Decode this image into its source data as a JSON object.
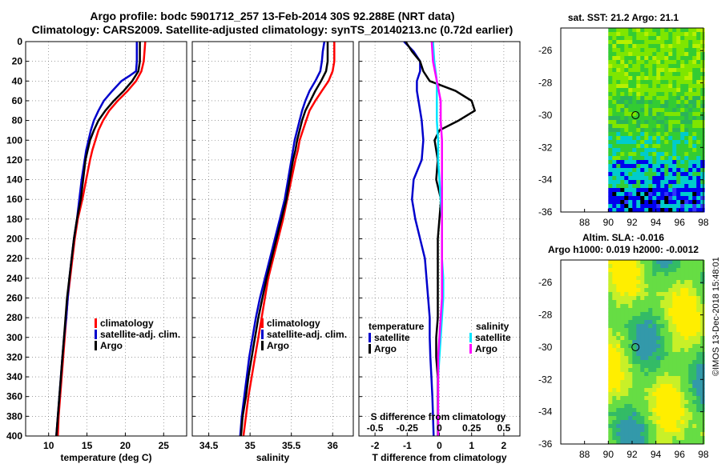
{
  "titles": {
    "line1": "Argo profile: bodc 5901712_257 13-Feb-2014 30S 92.288E (NRT data)",
    "line2": "Climatology: CARS2009. Satellite-adjusted climatology: synTS_20140213.nc (0.72d earlier)"
  },
  "maps": {
    "sst_title": "sat. SST: 21.2 Argo: 21.1",
    "sla_title1": "Altim. SLA: -0.016",
    "sla_title2": "Argo h1000: 0.019 h2000: -0.0012",
    "lon_ticks": [
      "88",
      "90",
      "92",
      "94",
      "96",
      "98"
    ],
    "lat_ticks": [
      "-26",
      "-28",
      "-30",
      "-32",
      "-34",
      "-36"
    ]
  },
  "credit": "©IMOS 13-Dec-2018 15:48:01",
  "colors": {
    "climatology": "#ff0000",
    "satellite": "#0000cc",
    "argo": "#000000",
    "sal_satellite": "#00e5ff",
    "sal_argo": "#ff00ff"
  },
  "chart_data": [
    {
      "type": "line",
      "xlabel": "temperature (deg C)",
      "ylabel": "",
      "xlim": [
        7,
        28
      ],
      "ylim": [
        400,
        0
      ],
      "xticks": [
        10,
        15,
        20,
        25
      ],
      "legend": [
        "climatology",
        "satellite-adj. clim.",
        "Argo"
      ],
      "series": [
        {
          "name": "climatology",
          "color": "#ff0000",
          "depth": [
            0,
            10,
            20,
            30,
            40,
            50,
            60,
            70,
            80,
            90,
            100,
            110,
            120,
            140,
            160,
            180,
            200,
            220,
            240,
            260,
            280,
            300,
            320,
            340,
            360,
            380,
            400
          ],
          "values": [
            22.6,
            22.5,
            22.4,
            22.1,
            21.4,
            20.3,
            19.0,
            17.9,
            17.1,
            16.5,
            16.1,
            15.7,
            15.4,
            14.9,
            14.4,
            13.8,
            13.4,
            13.1,
            12.8,
            12.5,
            12.3,
            12.1,
            11.9,
            11.7,
            11.5,
            11.3,
            11.2
          ]
        },
        {
          "name": "satellite-adj. clim.",
          "color": "#0000cc",
          "depth": [
            0,
            10,
            20,
            30,
            35,
            40,
            50,
            60,
            70,
            80,
            90,
            100,
            110,
            120,
            140,
            160,
            180,
            200,
            220,
            240,
            260,
            280,
            300,
            320,
            340,
            360,
            380,
            400
          ],
          "values": [
            21.5,
            21.5,
            21.5,
            21.4,
            20.5,
            19.5,
            18.3,
            17.2,
            16.5,
            15.9,
            15.5,
            15.2,
            14.9,
            14.7,
            14.3,
            14.0,
            13.7,
            13.3,
            13.0,
            12.7,
            12.5,
            12.3,
            12.0,
            11.8,
            11.6,
            11.4,
            11.2,
            11.0
          ]
        },
        {
          "name": "Argo",
          "color": "#000000",
          "depth": [
            0,
            10,
            20,
            30,
            40,
            50,
            60,
            70,
            80,
            90,
            100,
            110,
            120,
            140,
            160,
            180,
            200,
            220,
            240,
            260,
            280,
            300,
            320,
            340,
            360,
            380,
            400
          ],
          "values": [
            21.9,
            21.9,
            21.9,
            21.7,
            20.9,
            19.8,
            18.5,
            17.4,
            16.5,
            15.9,
            15.4,
            15.1,
            14.8,
            14.5,
            14.2,
            13.7,
            13.3,
            13.0,
            12.7,
            12.4,
            12.2,
            12.0,
            11.8,
            11.6,
            11.4,
            11.2,
            11.0
          ]
        }
      ]
    },
    {
      "type": "line",
      "xlabel": "salinity",
      "xlim": [
        34.3,
        36.25
      ],
      "ylim": [
        400,
        0
      ],
      "xticks": [
        34.5,
        35,
        35.5,
        36
      ],
      "legend": [
        "climatology",
        "satellite-adj. clim.",
        "Argo"
      ],
      "series": [
        {
          "name": "climatology",
          "color": "#ff0000",
          "depth": [
            0,
            10,
            20,
            30,
            40,
            50,
            60,
            70,
            80,
            90,
            100,
            110,
            120,
            140,
            160,
            180,
            200,
            220,
            240,
            260,
            280,
            300,
            320,
            340,
            360,
            380,
            400
          ],
          "values": [
            36.02,
            36.02,
            36.02,
            36.0,
            35.95,
            35.87,
            35.79,
            35.72,
            35.68,
            35.64,
            35.6,
            35.58,
            35.55,
            35.5,
            35.45,
            35.4,
            35.34,
            35.28,
            35.22,
            35.18,
            35.14,
            35.1,
            35.06,
            35.02,
            34.98,
            34.95,
            34.92
          ]
        },
        {
          "name": "satellite-adj. clim.",
          "color": "#0000cc",
          "depth": [
            0,
            10,
            20,
            30,
            40,
            50,
            60,
            70,
            80,
            90,
            100,
            110,
            120,
            140,
            160,
            180,
            200,
            220,
            240,
            260,
            280,
            300,
            320,
            340,
            360,
            380,
            400
          ],
          "values": [
            35.9,
            35.88,
            35.87,
            35.85,
            35.79,
            35.72,
            35.67,
            35.63,
            35.6,
            35.57,
            35.54,
            35.52,
            35.5,
            35.46,
            35.42,
            35.36,
            35.3,
            35.24,
            35.18,
            35.12,
            35.07,
            35.03,
            34.99,
            34.96,
            34.93,
            34.9,
            34.88
          ]
        },
        {
          "name": "Argo",
          "color": "#000000",
          "depth": [
            0,
            10,
            20,
            30,
            40,
            50,
            60,
            70,
            80,
            90,
            100,
            110,
            120,
            140,
            160,
            180,
            200,
            220,
            240,
            260,
            280,
            300,
            320,
            340,
            360,
            380,
            400
          ],
          "values": [
            35.94,
            35.94,
            35.94,
            35.92,
            35.86,
            35.79,
            35.73,
            35.67,
            35.63,
            35.6,
            35.57,
            35.55,
            35.52,
            35.48,
            35.44,
            35.38,
            35.32,
            35.26,
            35.2,
            35.15,
            35.1,
            35.06,
            35.02,
            34.98,
            34.95,
            34.91,
            34.89
          ]
        }
      ]
    },
    {
      "type": "line",
      "xlabel": "T difference from climatology",
      "top_label": "S difference from climatology",
      "xlim": [
        -2.5,
        2.5
      ],
      "ylim": [
        400,
        0
      ],
      "xticks": [
        -2,
        -1,
        0,
        1,
        2
      ],
      "top_ticks": [
        "-0.5",
        "-0.25",
        "0",
        "0.25",
        "0.5"
      ],
      "legend_temperature_title": "temperature",
      "legend_salinity_title": "salinity",
      "legend_temperature": [
        "satellite",
        "Argo"
      ],
      "legend_salinity": [
        "satellite",
        "Argo"
      ],
      "series": [
        {
          "name": "T satellite",
          "color": "#0000cc",
          "depth": [
            0,
            10,
            20,
            30,
            40,
            50,
            60,
            80,
            100,
            120,
            140,
            160,
            180,
            200,
            220,
            240,
            260,
            280,
            300,
            320,
            340,
            360,
            380,
            400
          ],
          "values": [
            -1.1,
            -0.8,
            -0.6,
            -0.6,
            -0.7,
            -0.7,
            -0.65,
            -0.55,
            -0.5,
            -0.55,
            -0.8,
            -0.85,
            -0.75,
            -0.6,
            -0.45,
            -0.4,
            -0.35,
            -0.3,
            -0.3,
            -0.28,
            -0.25,
            -0.22,
            -0.2,
            -0.18
          ]
        },
        {
          "name": "T Argo",
          "color": "#000000",
          "depth": [
            0,
            10,
            20,
            30,
            40,
            50,
            60,
            70,
            80,
            90,
            100,
            120,
            140,
            160,
            180,
            200,
            220,
            240,
            260,
            280,
            300,
            320,
            340,
            360,
            380,
            400
          ],
          "values": [
            -1.05,
            -0.85,
            -0.6,
            -0.5,
            -0.3,
            0.5,
            1.0,
            1.1,
            0.6,
            0.0,
            -0.15,
            -0.05,
            -0.1,
            0.05,
            0.0,
            -0.05,
            -0.05,
            -0.05,
            -0.05,
            -0.05,
            -0.1,
            -0.1,
            -0.05,
            -0.05,
            -0.05,
            -0.05
          ]
        },
        {
          "name": "S satellite",
          "color": "#00e5ff",
          "depth": [
            0,
            20,
            40,
            60,
            80,
            100,
            120,
            140,
            160,
            180,
            200,
            220,
            240,
            260,
            280,
            300,
            320,
            340,
            360,
            380,
            400
          ],
          "values": [
            -0.05,
            -0.04,
            -0.02,
            -0.02,
            -0.02,
            -0.01,
            -0.01,
            0.0,
            0.01,
            0.02,
            0.02,
            0.02,
            0.03,
            0.03,
            0.02,
            0.01,
            0.0,
            -0.01,
            -0.01,
            -0.01,
            -0.01
          ]
        },
        {
          "name": "S Argo",
          "color": "#ff00ff",
          "depth": [
            0,
            20,
            40,
            60,
            80,
            100,
            120,
            140,
            160,
            180,
            200,
            220,
            240,
            260,
            280,
            300,
            320,
            340,
            360,
            380,
            400
          ],
          "values": [
            -0.06,
            -0.05,
            -0.02,
            0.01,
            0.01,
            0.02,
            0.02,
            0.02,
            0.02,
            0.02,
            0.02,
            0.02,
            0.02,
            0.02,
            0.01,
            0.0,
            -0.01,
            -0.01,
            -0.01,
            -0.01,
            -0.01
          ]
        }
      ]
    }
  ],
  "depth_ticks": [
    "0",
    "20",
    "40",
    "60",
    "80",
    "100",
    "120",
    "140",
    "160",
    "180",
    "200",
    "220",
    "240",
    "260",
    "280",
    "300",
    "320",
    "340",
    "360",
    "380",
    "400"
  ]
}
